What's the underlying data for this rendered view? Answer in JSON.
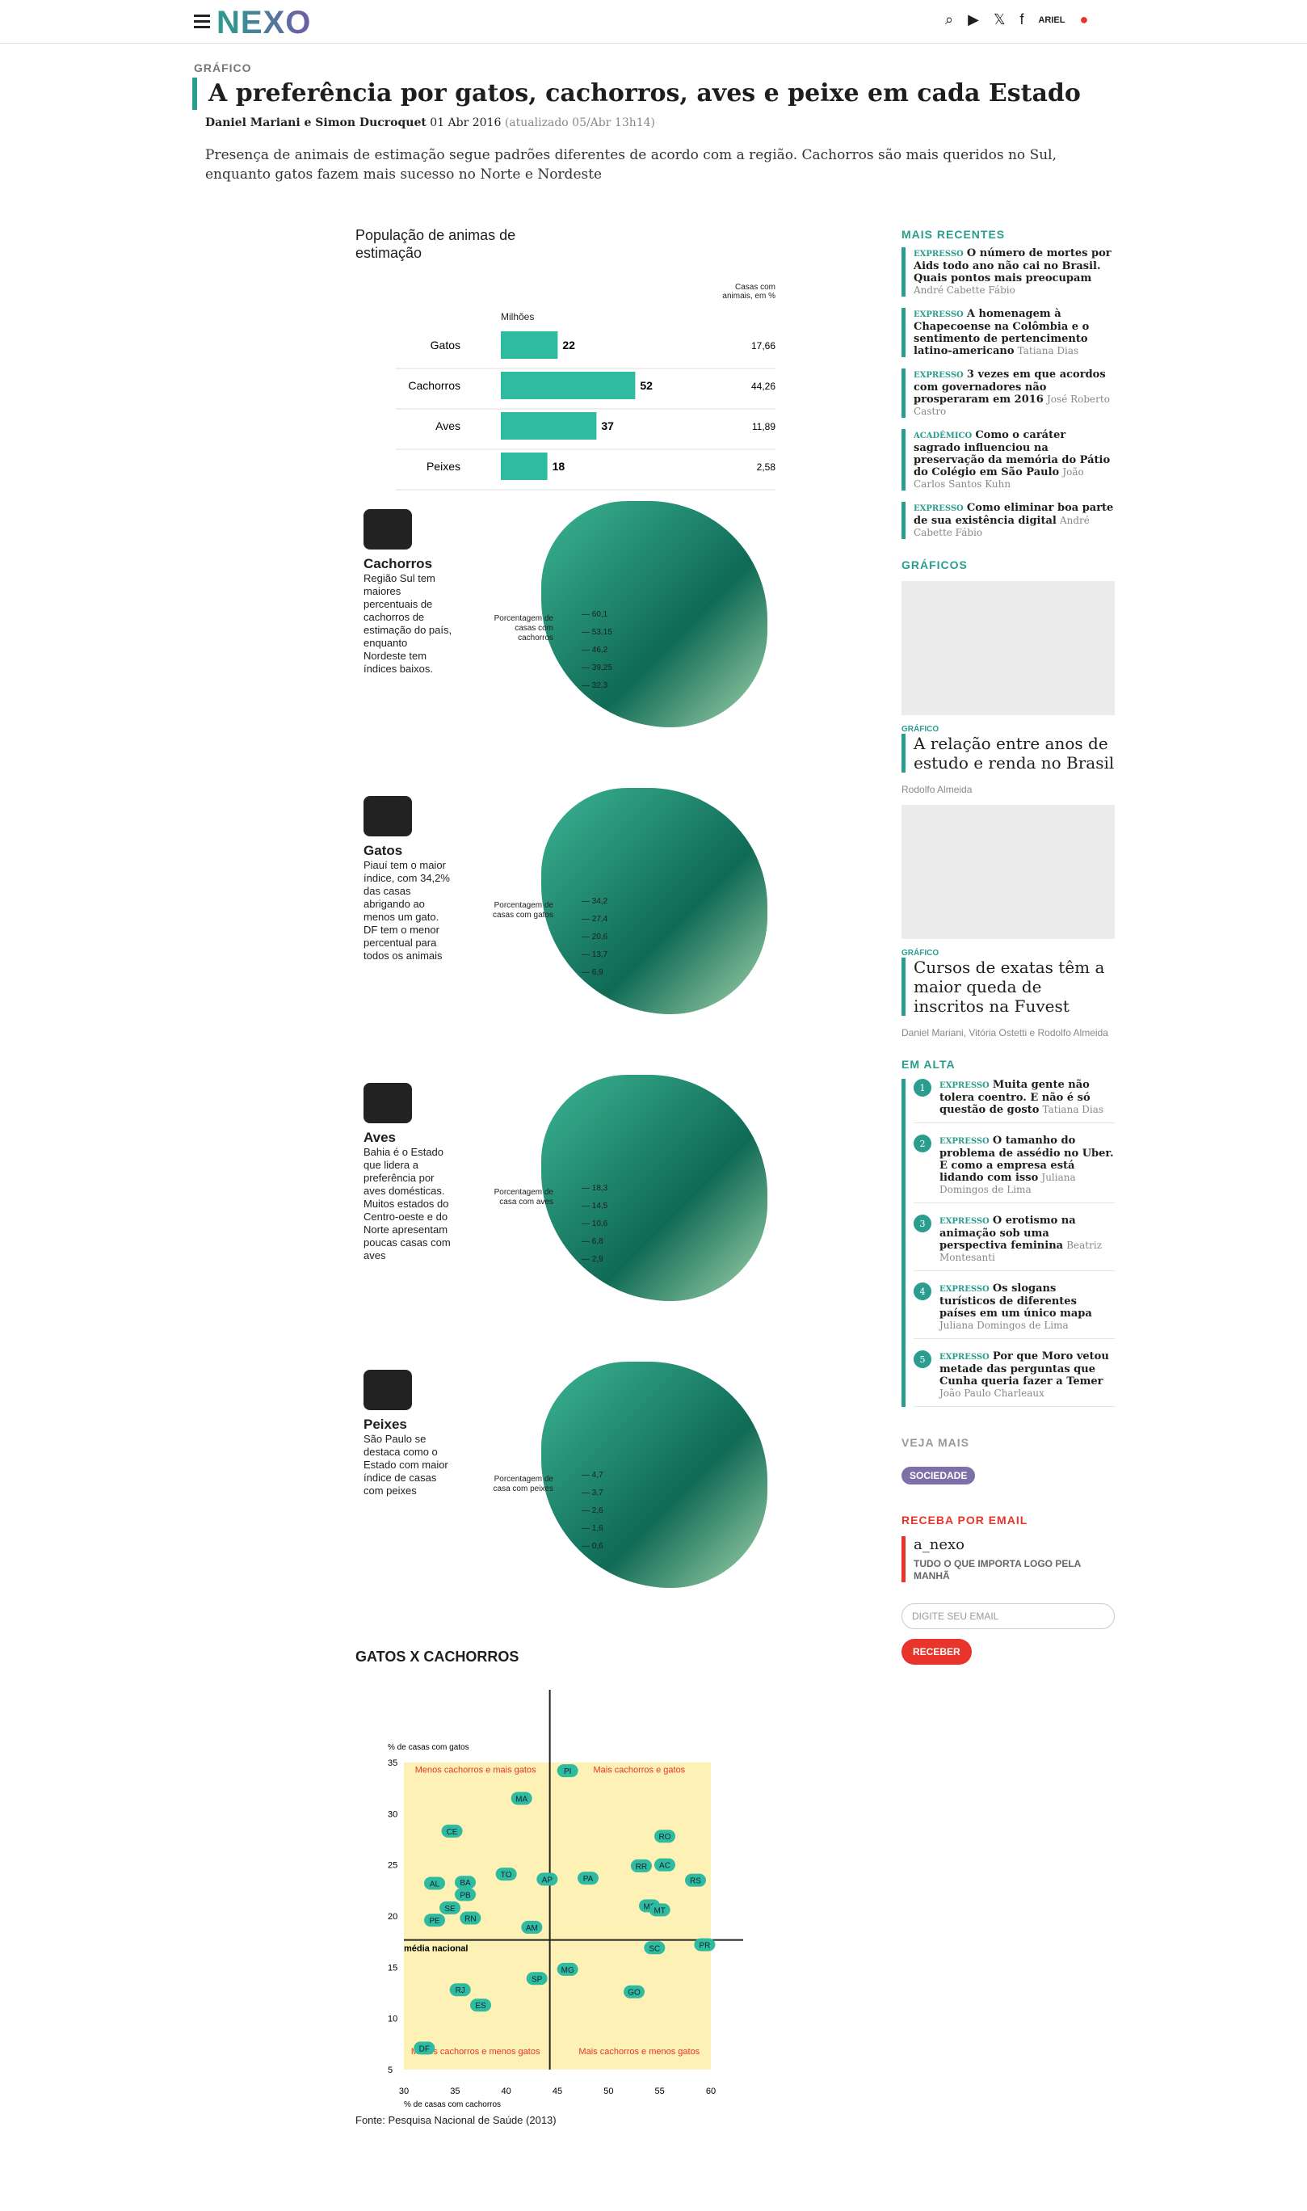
{
  "header": {
    "logo": "NEXO",
    "user": "ARIEL"
  },
  "article": {
    "kicker": "GRÁFICO",
    "title": "A preferência por gatos, cachorros, aves e peixe em cada Estado",
    "authors": "Daniel Mariani e Simon Ducroquet",
    "date": "01 Abr 2016",
    "updated": "(atualizado 05/Abr 13h14)",
    "dek": "Presença de animais de estimação segue padrões diferentes de acordo com a região. Cachorros são mais queridos no Sul, enquanto gatos fazem mais sucesso no Norte e Nordeste"
  },
  "infographic": {
    "population_title": "População de animas de estimação",
    "millions_label": "Milhões",
    "houses_label": "Casas com animais, em %",
    "rows": [
      {
        "label": "Gatos",
        "millions": 22,
        "pct": "17,66"
      },
      {
        "label": "Cachorros",
        "millions": 52,
        "pct": "44,26"
      },
      {
        "label": "Aves",
        "millions": 37,
        "pct": "11,89"
      },
      {
        "label": "Peixes",
        "millions": 18,
        "pct": "2,58"
      }
    ],
    "maps": [
      {
        "name": "Cachorros",
        "text": "Região Sul tem maiores percentuais de cachorros de estimação do país, enquanto Nordeste tem índices baixos.",
        "legend": "Porcentagem de casas com cachorros",
        "ticks": [
          "60,1",
          "53,15",
          "46,2",
          "39,25",
          "32,3"
        ]
      },
      {
        "name": "Gatos",
        "text": "Piauí tem o maior índice, com 34,2% das casas abrigando ao menos um gato. DF tem o menor percentual para todos os animais",
        "legend": "Porcentagem de casas com gatos",
        "ticks": [
          "34,2",
          "27,4",
          "20,6",
          "13,7",
          "6,9"
        ]
      },
      {
        "name": "Aves",
        "text": "Bahia é o Estado que lidera a preferência por aves domésticas. Muitos estados do Centro-oeste e do Norte apresentam poucas casas com aves",
        "legend": "Porcentagem de casa com aves",
        "ticks": [
          "18,3",
          "14,5",
          "10,6",
          "6,8",
          "2,9"
        ]
      },
      {
        "name": "Peixes",
        "text": "São Paulo se destaca como o Estado com maior índice de casas com peixes",
        "legend": "Porcentagem de casa com peixes",
        "ticks": [
          "4,7",
          "3,7",
          "2,6",
          "1,6",
          "0,6"
        ]
      }
    ],
    "scatter_title": "GATOS X CACHORROS",
    "source": "Fonte: Pesquisa Nacional de Saúde (2013)"
  },
  "chart_data": [
    {
      "type": "bar",
      "categories": [
        "Gatos",
        "Cachorros",
        "Aves",
        "Peixes"
      ],
      "values": [
        22,
        52,
        37,
        18
      ],
      "ylabel": "Milhões"
    },
    {
      "type": "scatter",
      "title": "GATOS X CACHORROS",
      "xlabel": "% de casas com cachorros",
      "ylabel": "% de casas com gatos",
      "xlim": [
        30,
        60
      ],
      "ylim": [
        5,
        35
      ],
      "reference_x": 44.26,
      "reference_y": 17.66,
      "reference_label": "média nacional",
      "quadrants": [
        "Menos cachorros e mais gatos",
        "Mais cachorros e gatos",
        "Menos cachorros e menos gatos",
        "Mais cachorros e menos gatos"
      ],
      "points": [
        {
          "label": "PI",
          "x": 46,
          "y": 34.2
        },
        {
          "label": "MA",
          "x": 41.5,
          "y": 31.5
        },
        {
          "label": "CE",
          "x": 34.7,
          "y": 28.3
        },
        {
          "label": "RO",
          "x": 55.5,
          "y": 27.8
        },
        {
          "label": "TO",
          "x": 40,
          "y": 24.1
        },
        {
          "label": "AP",
          "x": 44,
          "y": 23.6
        },
        {
          "label": "PA",
          "x": 48,
          "y": 23.7
        },
        {
          "label": "RR",
          "x": 53.2,
          "y": 24.9
        },
        {
          "label": "AC",
          "x": 55.5,
          "y": 25
        },
        {
          "label": "RS",
          "x": 58.5,
          "y": 23.5
        },
        {
          "label": "AL",
          "x": 33,
          "y": 23.2
        },
        {
          "label": "BA",
          "x": 36,
          "y": 23.3
        },
        {
          "label": "PB",
          "x": 36,
          "y": 22.1
        },
        {
          "label": "SE",
          "x": 34.5,
          "y": 20.8
        },
        {
          "label": "RN",
          "x": 36.5,
          "y": 19.8
        },
        {
          "label": "PE",
          "x": 33,
          "y": 19.6
        },
        {
          "label": "AM",
          "x": 42.5,
          "y": 18.9
        },
        {
          "label": "MS",
          "x": 54,
          "y": 21
        },
        {
          "label": "MT",
          "x": 55,
          "y": 20.6
        },
        {
          "label": "SC",
          "x": 54.5,
          "y": 16.9
        },
        {
          "label": "PR",
          "x": 59.4,
          "y": 17.2
        },
        {
          "label": "MG",
          "x": 46,
          "y": 14.8
        },
        {
          "label": "SP",
          "x": 43,
          "y": 13.9
        },
        {
          "label": "GO",
          "x": 52.5,
          "y": 12.6
        },
        {
          "label": "RJ",
          "x": 35.5,
          "y": 12.8
        },
        {
          "label": "ES",
          "x": 37.5,
          "y": 11.3
        },
        {
          "label": "DF",
          "x": 32,
          "y": 7.1
        }
      ]
    }
  ],
  "sidebar": {
    "recentes_title": "MAIS RECENTES",
    "recentes": [
      {
        "tag": "EXPRESSO",
        "title": "O número de mortes por Aids todo ano não cai no Brasil. Quais pontos mais preocupam",
        "author": "André Cabette Fábio"
      },
      {
        "tag": "EXPRESSO",
        "title": "A homenagem à Chapecoense na Colômbia e o sentimento de pertencimento latino-americano",
        "author": "Tatiana Dias"
      },
      {
        "tag": "EXPRESSO",
        "title": "3 vezes em que acordos com governadores não prosperaram em 2016",
        "author": "José Roberto Castro"
      },
      {
        "tag": "ACADÊMICO",
        "title": "Como o caráter sagrado influenciou na preservação da memória do Pátio do Colégio em São Paulo",
        "author": "João Carlos Santos Kuhn"
      },
      {
        "tag": "EXPRESSO",
        "title": "Como eliminar boa parte de sua existência digital",
        "author": "André Cabette Fábio"
      }
    ],
    "graficos_title": "GRÁFICOS",
    "graficos": [
      {
        "tag": "GRÁFICO",
        "title": "A relação entre anos de estudo e renda no Brasil",
        "author": "Rodolfo Almeida"
      },
      {
        "tag": "GRÁFICO",
        "title": "Cursos de exatas têm a maior queda de inscritos na Fuvest",
        "author": "Daniel Mariani, Vitória Ostetti e Rodolfo Almeida"
      }
    ],
    "em_alta_title": "EM ALTA",
    "em_alta": [
      {
        "n": "1",
        "tag": "EXPRESSO",
        "title": "Muita gente não tolera coentro. E não é só questão de gosto",
        "author": "Tatiana Dias"
      },
      {
        "n": "2",
        "tag": "EXPRESSO",
        "title": "O tamanho do problema de assédio no Uber. E como a empresa está lidando com isso",
        "author": "Juliana Domingos de Lima"
      },
      {
        "n": "3",
        "tag": "EXPRESSO",
        "title": "O erotismo na animação sob uma perspectiva feminina",
        "author": "Beatriz Montesanti"
      },
      {
        "n": "4",
        "tag": "EXPRESSO",
        "title": "Os slogans turísticos de diferentes países em um único mapa",
        "author": "Juliana Domingos de Lima"
      },
      {
        "n": "5",
        "tag": "EXPRESSO",
        "title": "Por que Moro vetou metade das perguntas que Cunha queria fazer a Temer",
        "author": "João Paulo Charleaux"
      }
    ],
    "veja_mais": "VEJA MAIS",
    "sociedade": "SOCIEDADE",
    "receba_title": "RECEBA POR EMAIL",
    "newsletter_name": "a_nexo",
    "newsletter_text": "TUDO O QUE IMPORTA LOGO PELA MANHÃ",
    "email_placeholder": "DIGITE SEU EMAIL",
    "button": "RECEBER"
  }
}
